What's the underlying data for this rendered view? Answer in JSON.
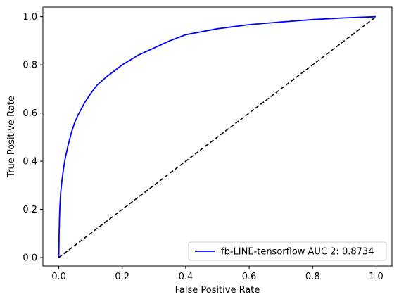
{
  "chart_data": {
    "type": "line",
    "xlabel": "False Positive Rate",
    "ylabel": "True Positive Rate",
    "xlim": [
      -0.05,
      1.05
    ],
    "ylim": [
      -0.035,
      1.04
    ],
    "x_ticks": [
      0.0,
      0.2,
      0.4,
      0.6,
      0.8,
      1.0
    ],
    "x_tick_labels": [
      "0.0",
      "0.2",
      "0.4",
      "0.6",
      "0.8",
      "1.0"
    ],
    "y_ticks": [
      0.0,
      0.2,
      0.4,
      0.6,
      0.8,
      1.0
    ],
    "y_tick_labels": [
      "0.0",
      "0.2",
      "0.4",
      "0.6",
      "0.8",
      "1.0"
    ],
    "grid": false,
    "legend_position": "lower right",
    "series": [
      {
        "name": "fb-LINE-tensorflow AUC 2: 0.8734",
        "color": "#0000ff",
        "style": "solid",
        "x": [
          0.0,
          0.001,
          0.003,
          0.006,
          0.01,
          0.015,
          0.02,
          0.03,
          0.04,
          0.05,
          0.06,
          0.08,
          0.1,
          0.12,
          0.15,
          0.2,
          0.25,
          0.3,
          0.35,
          0.4,
          0.5,
          0.6,
          0.7,
          0.8,
          0.9,
          1.0
        ],
        "y": [
          0.0,
          0.1,
          0.2,
          0.27,
          0.32,
          0.37,
          0.41,
          0.47,
          0.52,
          0.56,
          0.59,
          0.64,
          0.68,
          0.715,
          0.75,
          0.8,
          0.84,
          0.87,
          0.9,
          0.925,
          0.95,
          0.967,
          0.978,
          0.988,
          0.995,
          1.0
        ]
      },
      {
        "name": "",
        "color": "#000000",
        "style": "dashed",
        "x": [
          0.0,
          1.0
        ],
        "y": [
          0.0,
          1.0
        ]
      }
    ],
    "legend_label": "fb-LINE-tensorflow AUC 2: 0.8734"
  }
}
